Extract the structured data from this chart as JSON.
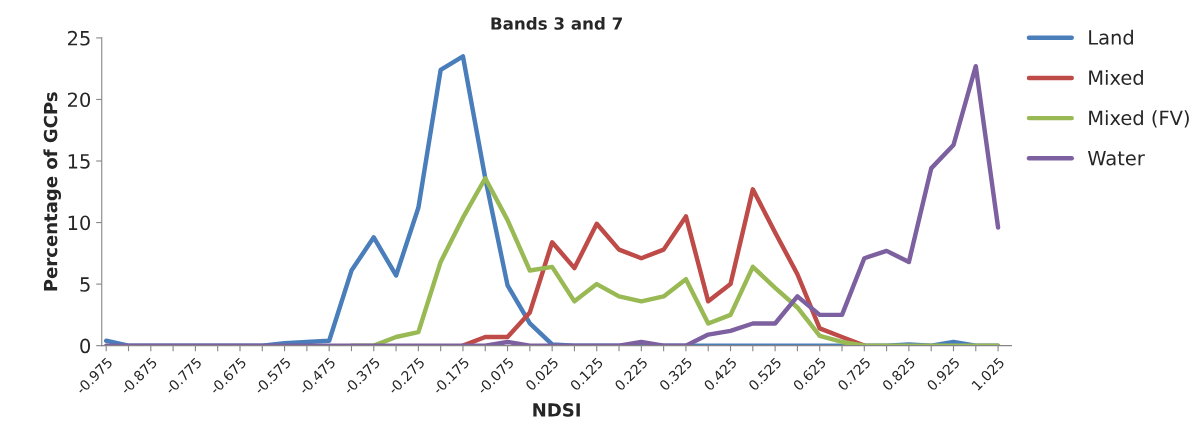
{
  "chart_data": {
    "type": "line",
    "title": "Bands 3 and 7",
    "xlabel": "NDSI",
    "ylabel": "Percentage of GCPs",
    "categories": [
      "-0.975",
      null,
      "-0.875",
      null,
      "-0.775",
      null,
      "-0.675",
      null,
      "-0.575",
      null,
      "-0.475",
      null,
      "-0.375",
      null,
      "-0.275",
      null,
      "-0.175",
      null,
      "-0.075",
      null,
      "0.025",
      null,
      "0.125",
      null,
      "0.225",
      null,
      "0.325",
      null,
      "0.425",
      null,
      "0.525",
      null,
      "0.625",
      null,
      "0.725",
      null,
      "0.825",
      null,
      "0.925",
      null,
      "1.025"
    ],
    "series": [
      {
        "name": "Land",
        "color": "#4a7ebb",
        "values": [
          0.4,
          0,
          0,
          0,
          0,
          0,
          0,
          0,
          0.2,
          0.3,
          0.4,
          6.1,
          8.8,
          5.7,
          11.2,
          22.4,
          23.5,
          13.6,
          4.9,
          1.8,
          0.1,
          0,
          0,
          0,
          0,
          0,
          0,
          0,
          0,
          0,
          0,
          0,
          0,
          0,
          0,
          0,
          0.1,
          0,
          0.3,
          0,
          0
        ]
      },
      {
        "name": "Mixed",
        "color": "#be4b48",
        "values": [
          null,
          null,
          null,
          null,
          null,
          null,
          null,
          null,
          null,
          null,
          null,
          null,
          null,
          null,
          null,
          null,
          0,
          0.7,
          0.7,
          2.7,
          8.4,
          6.3,
          9.9,
          7.8,
          7.1,
          7.8,
          10.5,
          3.6,
          5.0,
          12.7,
          9.2,
          5.8,
          1.4,
          0.7,
          0,
          null,
          null,
          null,
          null,
          null,
          null
        ]
      },
      {
        "name": "Mixed (FV)",
        "color": "#98b954",
        "values": [
          null,
          null,
          null,
          null,
          null,
          null,
          null,
          null,
          null,
          null,
          null,
          0,
          0,
          0.7,
          1.1,
          6.8,
          10.4,
          13.6,
          10.2,
          6.1,
          6.4,
          3.6,
          5.0,
          4.0,
          3.6,
          4.0,
          5.4,
          1.8,
          2.5,
          6.4,
          4.7,
          3.1,
          0.8,
          0.3,
          0,
          0,
          0,
          0,
          0,
          0,
          0
        ]
      },
      {
        "name": "Water",
        "color": "#7d60a0",
        "values": [
          0,
          0,
          0,
          0,
          0,
          0,
          0,
          0,
          0,
          0,
          0,
          0,
          0,
          0,
          0,
          0,
          0,
          0,
          0.3,
          0,
          0,
          0,
          0,
          0,
          0.3,
          0,
          0,
          0.9,
          1.2,
          1.8,
          1.8,
          4.0,
          2.5,
          2.5,
          7.1,
          7.7,
          6.8,
          14.4,
          16.3,
          22.7,
          9.6
        ]
      }
    ],
    "ylim": [
      0,
      25
    ],
    "yticks": [
      0,
      5,
      10,
      15,
      20,
      25
    ],
    "grid": false,
    "legend": "right"
  }
}
